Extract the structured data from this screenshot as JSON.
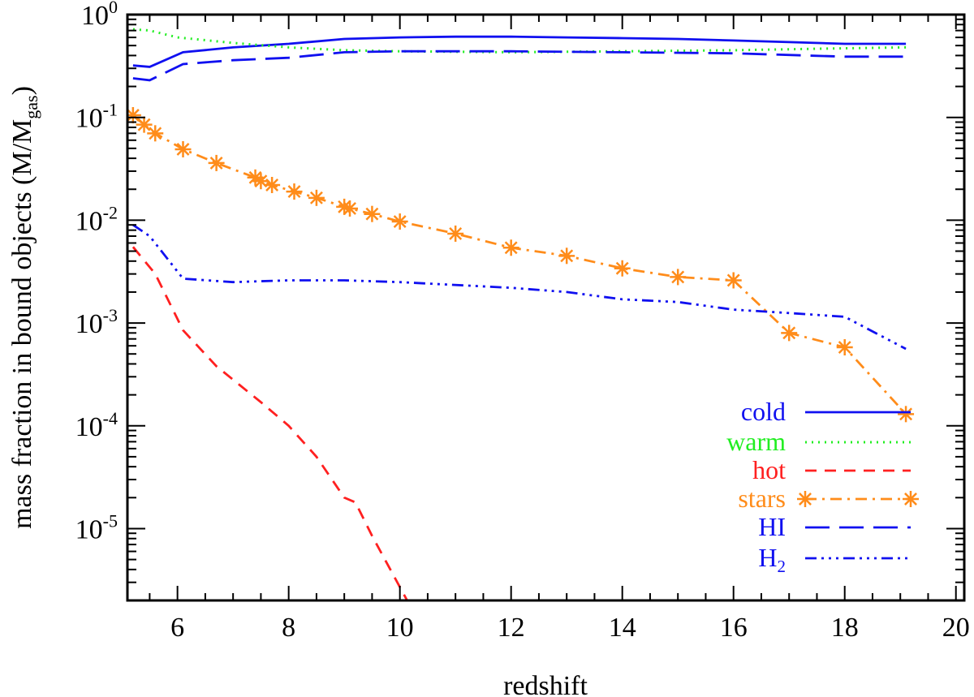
{
  "chart_data": {
    "type": "line",
    "xlabel": "redshift",
    "ylabel": "mass fraction in bound objects (M/M",
    "ylabel_sub": "gas",
    "ylabel_close": ")",
    "xlim": [
      5.1,
      20.15
    ],
    "ylim": [
      2e-06,
      1.0
    ],
    "yscale": "log",
    "x_ticks": [
      6,
      8,
      10,
      12,
      14,
      16,
      18,
      20
    ],
    "x_tick_labels": [
      "6",
      "8",
      "10",
      "12",
      "14",
      "16",
      "18",
      "20"
    ],
    "y_ticks": [
      1,
      0.1,
      0.01,
      0.001,
      0.0001,
      1e-05
    ],
    "y_tick_labels": [
      {
        "base": "10",
        "exp": "0"
      },
      {
        "base": "10",
        "exp": "-1"
      },
      {
        "base": "10",
        "exp": "-2"
      },
      {
        "base": "10",
        "exp": "-3"
      },
      {
        "base": "10",
        "exp": "-4"
      },
      {
        "base": "10",
        "exp": "-5"
      }
    ],
    "grid": false,
    "legend_position": "bottom-right",
    "series": [
      {
        "name": "cold",
        "color": "#1010f0",
        "style": "solid",
        "marker": "none",
        "x": [
          5.2,
          5.5,
          6.1,
          7,
          8,
          9,
          10,
          11,
          12,
          13,
          14,
          15,
          16,
          17,
          18,
          19.1
        ],
        "y": [
          0.32,
          0.31,
          0.43,
          0.48,
          0.52,
          0.58,
          0.6,
          0.61,
          0.61,
          0.6,
          0.59,
          0.58,
          0.56,
          0.54,
          0.52,
          0.52
        ]
      },
      {
        "name": "warm",
        "color": "#22ee22",
        "style": "dotted",
        "marker": "none",
        "x": [
          5.2,
          5.5,
          6,
          7,
          8,
          9,
          10,
          12,
          14,
          16,
          18,
          19.1
        ],
        "y": [
          0.72,
          0.7,
          0.6,
          0.53,
          0.48,
          0.45,
          0.44,
          0.43,
          0.44,
          0.45,
          0.47,
          0.48
        ]
      },
      {
        "name": "hot",
        "color": "#ff2020",
        "style": "dashed",
        "marker": "none",
        "x": [
          5.2,
          5.6,
          6.1,
          6.7,
          7.5,
          8,
          8.5,
          9,
          9.2,
          9.5,
          10.13
        ],
        "y": [
          0.0055,
          0.003,
          0.00085,
          0.00038,
          0.00017,
          0.0001,
          5e-05,
          2e-05,
          1.8e-05,
          8.5e-06,
          2e-06
        ]
      },
      {
        "name": "stars",
        "color": "#ff8c1a",
        "style": "dashdot",
        "marker": "asterisk",
        "x": [
          5.2,
          5.4,
          5.6,
          6.1,
          6.7,
          7.4,
          7.5,
          7.7,
          8.1,
          8.5,
          9,
          9.1,
          9.5,
          10,
          11,
          12,
          13,
          14,
          15,
          16,
          17,
          18,
          19.1
        ],
        "y": [
          0.105,
          0.085,
          0.07,
          0.049,
          0.036,
          0.026,
          0.024,
          0.022,
          0.019,
          0.0165,
          0.0135,
          0.013,
          0.0115,
          0.0097,
          0.0074,
          0.0054,
          0.0045,
          0.0034,
          0.0028,
          0.0026,
          0.0008,
          0.00058,
          0.00013
        ]
      },
      {
        "name": "HI",
        "color": "#1010f0",
        "style": "longdash",
        "marker": "none",
        "x": [
          5.2,
          5.5,
          6.1,
          7,
          8,
          9,
          10,
          12,
          14,
          16,
          18,
          19.1
        ],
        "y": [
          0.24,
          0.23,
          0.33,
          0.36,
          0.38,
          0.43,
          0.44,
          0.44,
          0.43,
          0.42,
          0.39,
          0.39
        ]
      },
      {
        "name": "H",
        "name_sub": "2",
        "color": "#1010f0",
        "style": "dashdotdotdot",
        "marker": "none",
        "x": [
          5.2,
          5.5,
          6.1,
          7,
          8,
          9,
          10,
          12,
          13,
          14,
          15,
          16,
          17,
          18,
          19.1
        ],
        "y": [
          0.009,
          0.007,
          0.0027,
          0.0025,
          0.0026,
          0.0026,
          0.0025,
          0.0022,
          0.002,
          0.0017,
          0.0016,
          0.00135,
          0.00125,
          0.00115,
          0.00056
        ]
      }
    ]
  }
}
